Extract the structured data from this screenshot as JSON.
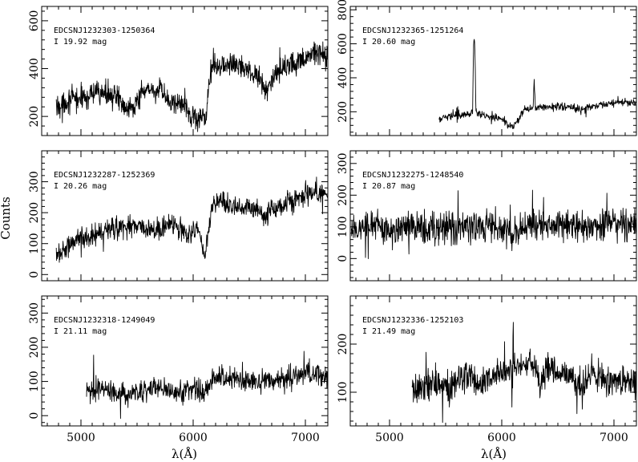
{
  "figure": {
    "ylabel": "Counts",
    "xlabel": "λ(Å)"
  },
  "chart_data": [
    {
      "type": "line",
      "id": "EDCSNJ1232303-1250364",
      "object": "EDCSNJ1232303-1250364",
      "magnitude": "I 19.92 mag",
      "xlim": [
        4650,
        7200
      ],
      "ylim": [
        120,
        660
      ],
      "yticks": [
        200,
        400,
        600
      ],
      "xticks": [
        5000,
        6000,
        7000
      ],
      "x_tick_labels_shown": false,
      "noise": 45,
      "series": [
        {
          "x": [
            4780,
            4900,
            5000,
            5100,
            5200,
            5300,
            5400,
            5500,
            5600,
            5700,
            5800,
            5880,
            5950,
            6000,
            6050,
            6080,
            6110,
            6140,
            6180,
            6250,
            6300,
            6400,
            6500,
            6600,
            6650,
            6700,
            6800,
            6900,
            7000,
            7100,
            7200
          ],
          "y": [
            240,
            270,
            275,
            290,
            300,
            285,
            240,
            260,
            320,
            300,
            260,
            255,
            230,
            200,
            180,
            200,
            170,
            350,
            430,
            410,
            415,
            420,
            390,
            360,
            300,
            350,
            400,
            410,
            440,
            470,
            450
          ]
        }
      ]
    },
    {
      "type": "line",
      "id": "EDCSNJ1232365-1251264",
      "object": "EDCSNJ1232365-1251264",
      "magnitude": "I 20.60 mag",
      "xlim": [
        4650,
        7200
      ],
      "ylim": [
        60,
        820
      ],
      "yticks": [
        200,
        400,
        600,
        800
      ],
      "xticks": [
        5000,
        6000,
        7000
      ],
      "x_tick_labels_shown": false,
      "noise": 20,
      "series": [
        {
          "x": [
            5440,
            5500,
            5600,
            5700,
            5740,
            5750,
            5760,
            5770,
            5800,
            5900,
            6000,
            6050,
            6100,
            6150,
            6200,
            6280,
            6290,
            6300,
            6310,
            6400,
            6500,
            6600,
            6700,
            6800,
            6900,
            7000,
            7100,
            7200
          ],
          "y": [
            150,
            170,
            180,
            190,
            200,
            630,
            590,
            200,
            180,
            170,
            160,
            130,
            110,
            150,
            210,
            220,
            410,
            230,
            220,
            230,
            230,
            230,
            215,
            230,
            245,
            250,
            260,
            255
          ]
        }
      ]
    },
    {
      "type": "line",
      "id": "EDCSNJ1232287-1252369",
      "object": "EDCSNJ1232287-1252369",
      "magnitude": "I 20.26 mag",
      "xlim": [
        4650,
        7200
      ],
      "ylim": [
        -20,
        400
      ],
      "yticks": [
        0,
        100,
        200,
        300
      ],
      "xticks": [
        5000,
        6000,
        7000
      ],
      "x_tick_labels_shown": false,
      "noise": 32,
      "series": [
        {
          "x": [
            4780,
            4900,
            5000,
            5100,
            5200,
            5300,
            5400,
            5500,
            5600,
            5700,
            5800,
            5900,
            5950,
            6000,
            6050,
            6100,
            6150,
            6200,
            6300,
            6400,
            6500,
            6600,
            6650,
            6700,
            6800,
            6900,
            7000,
            7100,
            7200
          ],
          "y": [
            60,
            100,
            120,
            130,
            140,
            145,
            150,
            160,
            150,
            145,
            160,
            150,
            120,
            140,
            150,
            50,
            180,
            240,
            230,
            215,
            215,
            200,
            180,
            210,
            230,
            240,
            255,
            265,
            255
          ]
        }
      ]
    },
    {
      "type": "line",
      "id": "EDCSNJ1232275-1248540",
      "object": "EDCSNJ1232275-1248540",
      "magnitude": "I 20.87 mag",
      "xlim": [
        4650,
        7200
      ],
      "ylim": [
        -70,
        340
      ],
      "yticks": [
        0,
        100,
        200,
        300
      ],
      "xticks": [
        5000,
        6000,
        7000
      ],
      "x_tick_labels_shown": false,
      "noise": 45,
      "series": [
        {
          "x": [
            4660,
            4800,
            5000,
            5200,
            5400,
            5600,
            5800,
            6000,
            6100,
            6200,
            6400,
            6600,
            6800,
            7000,
            7200
          ],
          "y": [
            80,
            110,
            100,
            95,
            100,
            95,
            100,
            95,
            75,
            100,
            105,
            100,
            100,
            110,
            105
          ]
        }
      ]
    },
    {
      "type": "line",
      "id": "EDCSNJ1232318-1249049",
      "object": "EDCSNJ1232318-1249049",
      "magnitude": "I 21.11 mag",
      "xlim": [
        4650,
        7200
      ],
      "ylim": [
        -30,
        350
      ],
      "yticks": [
        0,
        100,
        200,
        300
      ],
      "xticks": [
        5000,
        6000,
        7000
      ],
      "x_tick_labels_shown": true,
      "noise": 30,
      "series": [
        {
          "x": [
            5050,
            5100,
            5200,
            5300,
            5400,
            5500,
            5600,
            5700,
            5800,
            5900,
            6000,
            6100,
            6150,
            6200,
            6300,
            6400,
            6500,
            6600,
            6700,
            6800,
            6900,
            7000,
            7100,
            7200
          ],
          "y": [
            60,
            80,
            80,
            75,
            60,
            70,
            75,
            80,
            75,
            70,
            80,
            60,
            100,
            115,
            110,
            105,
            100,
            100,
            105,
            110,
            115,
            120,
            120,
            115
          ]
        }
      ]
    },
    {
      "type": "line",
      "id": "EDCSNJ1232336-1252103",
      "object": "EDCSNJ1232336-1252103",
      "magnitude": "I 21.49 mag",
      "xlim": [
        4650,
        7200
      ],
      "ylim": [
        30,
        300
      ],
      "yticks": [
        100,
        200
      ],
      "xticks": [
        5000,
        6000,
        7000
      ],
      "x_tick_labels_shown": true,
      "noise": 28,
      "series": [
        {
          "x": [
            5200,
            5300,
            5400,
            5500,
            5600,
            5700,
            5800,
            5900,
            6000,
            6100,
            6200,
            6300,
            6350,
            6400,
            6500,
            6600,
            6700,
            6800,
            6900,
            7000,
            7100,
            7200
          ],
          "y": [
            100,
            115,
            120,
            110,
            120,
            140,
            120,
            135,
            140,
            150,
            160,
            150,
            110,
            150,
            145,
            135,
            110,
            140,
            130,
            125,
            115,
            120
          ]
        }
      ]
    }
  ]
}
